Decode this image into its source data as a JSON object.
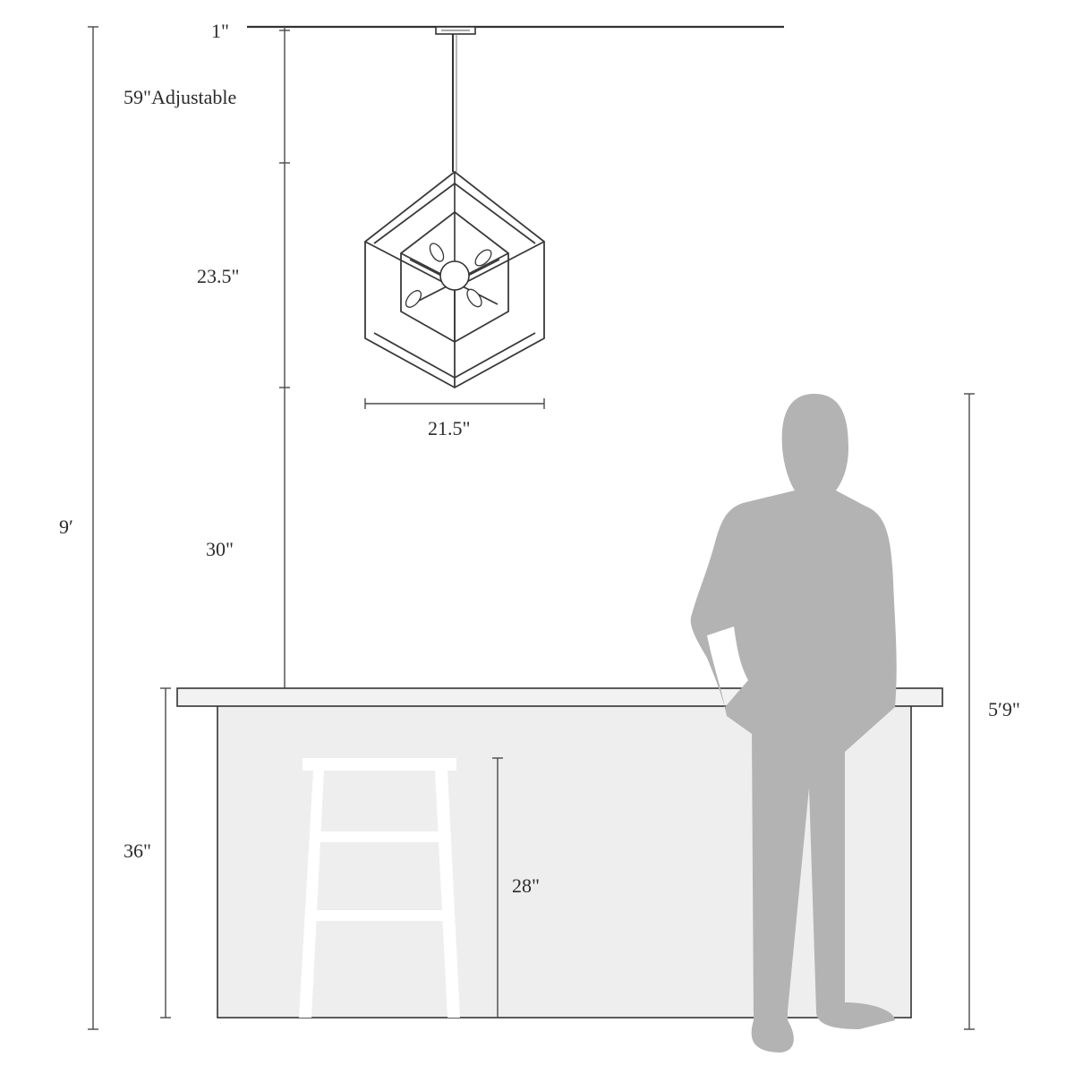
{
  "dimensions": {
    "canopy_height": "1\"",
    "adjustable_rod": "59\"Adjustable",
    "fixture_height": "23.5\"",
    "fixture_width": "21.5\"",
    "clearance_above_counter": "30\"",
    "ceiling_height": "9′",
    "counter_height": "36\"",
    "stool_height": "28\"",
    "person_height": "5′9\""
  },
  "colors": {
    "line": "#4a4a4a",
    "counter_fill": "#f1f1f1",
    "counter_body": "#eeeeee",
    "silhouette": "#b3b3b3",
    "stool": "#ffffff"
  },
  "icons": {
    "pendant": "pendant-light-icon",
    "person": "person-silhouette-icon",
    "stool": "bar-stool-icon"
  }
}
